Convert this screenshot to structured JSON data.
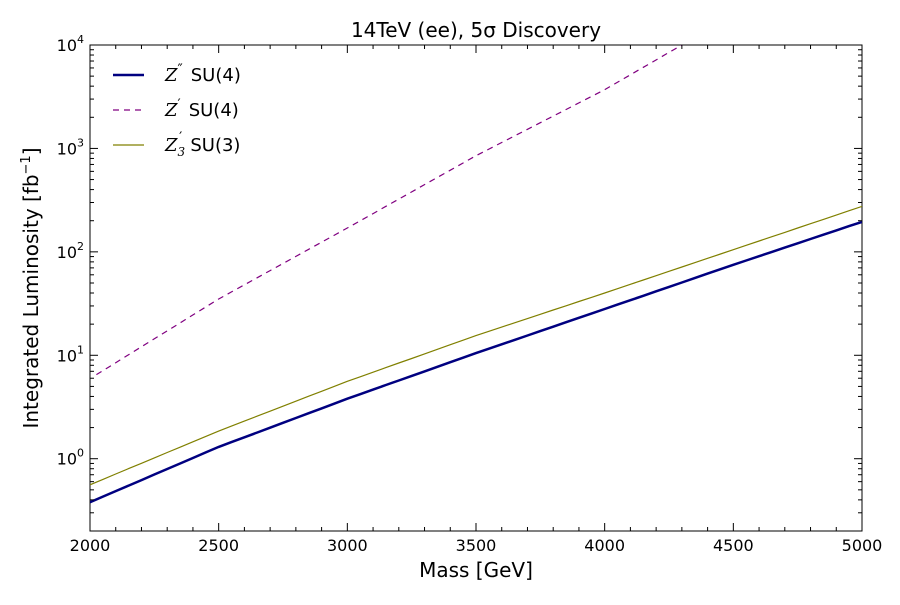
{
  "chart_data": {
    "type": "line",
    "title": "14TeV (ee), 5σ Discovery",
    "xlabel": "Mass [GeV]",
    "ylabel": "Integrated Luminosity [fb",
    "ylabel_sup": "−1",
    "ylabel_end": "]",
    "xlim": [
      2000,
      5000
    ],
    "ylim": [
      0.2,
      10000
    ],
    "yscale": "log",
    "grid": false,
    "legend_position": "top-left",
    "x_ticks": [
      2000,
      2500,
      3000,
      3500,
      4000,
      4500,
      5000
    ],
    "x_tick_labels": [
      "2000",
      "2500",
      "3000",
      "3500",
      "4000",
      "4500",
      "5000"
    ],
    "y_ticks": [
      1,
      10,
      100,
      1000,
      10000
    ],
    "y_tick_labels": [
      {
        "base": "10",
        "exp": "0"
      },
      {
        "base": "10",
        "exp": "1"
      },
      {
        "base": "10",
        "exp": "2"
      },
      {
        "base": "10",
        "exp": "3"
      },
      {
        "base": "10",
        "exp": "4"
      }
    ],
    "series": [
      {
        "name": "Z'' SU(4)",
        "label_symbol": "Z",
        "label_prime": "″",
        "label_sub": "",
        "label_text": "SU(4)",
        "color": "#000080",
        "style": "solid",
        "width": "thick",
        "x": [
          2000,
          2500,
          3000,
          3500,
          4000,
          4500,
          5000
        ],
        "y": [
          0.38,
          1.3,
          3.8,
          10.5,
          28,
          75,
          195
        ]
      },
      {
        "name": "Z' SU(4)",
        "label_symbol": "Z",
        "label_prime": "′",
        "label_sub": "",
        "label_text": "SU(4)",
        "color": "#800080",
        "style": "dashed",
        "width": "thin",
        "x": [
          2025,
          2500,
          3000,
          3500,
          4000,
          4300
        ],
        "y": [
          6.5,
          35,
          170,
          850,
          3700,
          10000
        ]
      },
      {
        "name": "Z'_3 SU(3)",
        "label_symbol": "Z",
        "label_prime": "′",
        "label_sub": "3",
        "label_text": "SU(3)",
        "color": "#808000",
        "style": "solid",
        "width": "thin",
        "x": [
          2000,
          2500,
          3000,
          3500,
          4000,
          4500,
          5000
        ],
        "y": [
          0.56,
          1.85,
          5.6,
          15.5,
          40,
          105,
          275
        ]
      }
    ]
  }
}
